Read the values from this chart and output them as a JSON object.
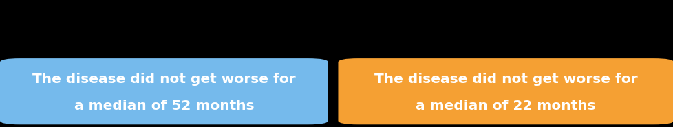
{
  "background_color": "#000000",
  "box1_color": "#75BAEC",
  "box2_color": "#F5A033",
  "text1_line1": "The disease did not get worse for",
  "text1_line2": "a median of 52 months",
  "text2_line1": "The disease did not get worse for",
  "text2_line2": "a median of 22 months",
  "text_color": "#FFFFFF",
  "font_size": 14.5,
  "fig_width": 9.79,
  "fig_height": 1.85,
  "dpi": 100
}
